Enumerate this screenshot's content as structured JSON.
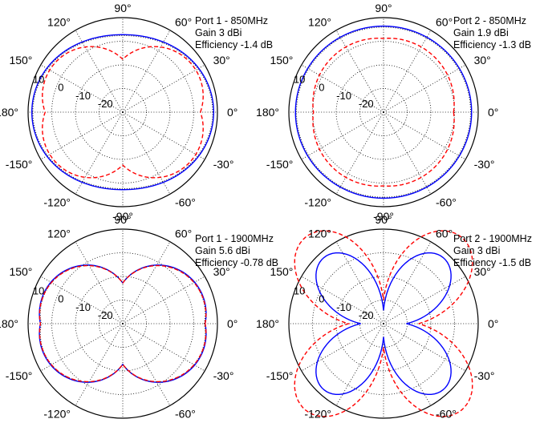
{
  "chart_data": [
    {
      "type": "polar",
      "info": [
        "Port 1 - 850MHz",
        "Gain 3 dBi",
        "Efficiency -1.4 dB"
      ],
      "angle_labels": [
        "0°",
        "30°",
        "60°",
        "90°",
        "120°",
        "150°",
        "180°",
        "-150°",
        "-120°",
        "-90°",
        "-60°",
        "-30°"
      ],
      "angle_values": [
        0,
        30,
        60,
        90,
        120,
        150,
        180,
        -150,
        -120,
        -90,
        -60,
        -30
      ],
      "radial_labels": [
        "10",
        "0",
        "-10",
        "-20"
      ],
      "radial_values": [
        10,
        0,
        -10,
        -20
      ],
      "rlim": [
        -30,
        10
      ],
      "series": [
        {
          "style": "solid",
          "color": "#0000ff",
          "pattern": "omni",
          "params": [
            0.96,
            0.82,
            0,
            0
          ]
        },
        {
          "style": "dotted",
          "color": "#1a1a1a",
          "pattern": "omni",
          "params": [
            0.95,
            0.81,
            0,
            0
          ]
        },
        {
          "style": "dashed",
          "color": "#ff0000",
          "pattern": "lobes2",
          "params": [
            0.55,
            0.27,
            0.29,
            0
          ]
        }
      ]
    },
    {
      "type": "polar",
      "info": [
        "Port 2 - 850MHz",
        "Gain 1.9 dBi",
        "Efficiency -1.3 dB"
      ],
      "angle_labels": [
        "0°",
        "30°",
        "60°",
        "90°",
        "120°",
        "150°",
        "180°",
        "-150°",
        "-120°",
        "-90°",
        "-60°",
        "-30°"
      ],
      "angle_values": [
        0,
        30,
        60,
        90,
        120,
        150,
        180,
        -150,
        -120,
        -90,
        -60,
        -30
      ],
      "radial_labels": [
        "10",
        "0",
        "-10",
        "-20"
      ],
      "radial_values": [
        10,
        0,
        -10,
        -20
      ],
      "rlim": [
        -30,
        10
      ],
      "series": [
        {
          "style": "solid",
          "color": "#0000ff",
          "pattern": "omni",
          "params": [
            0.93,
            0.91,
            0,
            0
          ]
        },
        {
          "style": "dotted",
          "color": "#1a1a1a",
          "pattern": "omni",
          "params": [
            0.92,
            0.9,
            0,
            0
          ]
        },
        {
          "style": "dashed",
          "color": "#ff0000",
          "pattern": "lobes2",
          "params": [
            0.06,
            0.68,
            0.1,
            0
          ]
        }
      ]
    },
    {
      "type": "polar",
      "info": [
        "Port 1 - 1900MHz",
        "Gain 5.6 dBi",
        "Efficiency -0.78 dB"
      ],
      "angle_labels": [
        "0°",
        "30°",
        "60°",
        "90°",
        "120°",
        "150°",
        "180°",
        "-150°",
        "-120°",
        "-90°",
        "-60°",
        "-30°"
      ],
      "angle_values": [
        0,
        30,
        60,
        90,
        120,
        150,
        180,
        -150,
        -120,
        -90,
        -60,
        -30
      ],
      "radial_labels": [
        "10",
        "0",
        "-10",
        "-20"
      ],
      "radial_values": [
        10,
        0,
        -10,
        -20
      ],
      "rlim": [
        -30,
        10
      ],
      "series": [
        {
          "style": "solid",
          "color": "#0000ff",
          "pattern": "lobes2",
          "params": [
            0.62,
            0.25,
            0.18,
            0
          ]
        },
        {
          "style": "dotted",
          "color": "#1a1a1a",
          "pattern": "lobes2",
          "params": [
            0.61,
            0.25,
            0.18,
            0
          ]
        },
        {
          "style": "dashed",
          "color": "#ff0000",
          "pattern": "lobes2",
          "params": [
            0.6,
            0.27,
            0.16,
            0
          ]
        }
      ]
    },
    {
      "type": "polar",
      "info": [
        "Port 2 - 1900MHz",
        "Gain 3 dBi",
        "Efficiency -1.5 dB"
      ],
      "angle_labels": [
        "0°",
        "30°",
        "60°",
        "90°",
        "120°",
        "150°",
        "180°",
        "-150°",
        "-120°",
        "-90°",
        "-60°",
        "-30°"
      ],
      "angle_values": [
        0,
        30,
        60,
        90,
        120,
        150,
        180,
        -150,
        -120,
        -90,
        -60,
        -30
      ],
      "radial_labels": [
        "10",
        "0",
        "-10",
        "-20"
      ],
      "radial_values": [
        10,
        0,
        -10,
        -20
      ],
      "rlim": [
        -30,
        10
      ],
      "series": [
        {
          "style": "solid",
          "color": "#0000ff",
          "pattern": "clover",
          "params": [
            0.53,
            0.14,
            0.1,
            0.28
          ]
        },
        {
          "style": "dashed",
          "color": "#ff0000",
          "pattern": "clover",
          "params": [
            0.66,
            0.25,
            0.12,
            0.33
          ]
        }
      ]
    }
  ]
}
